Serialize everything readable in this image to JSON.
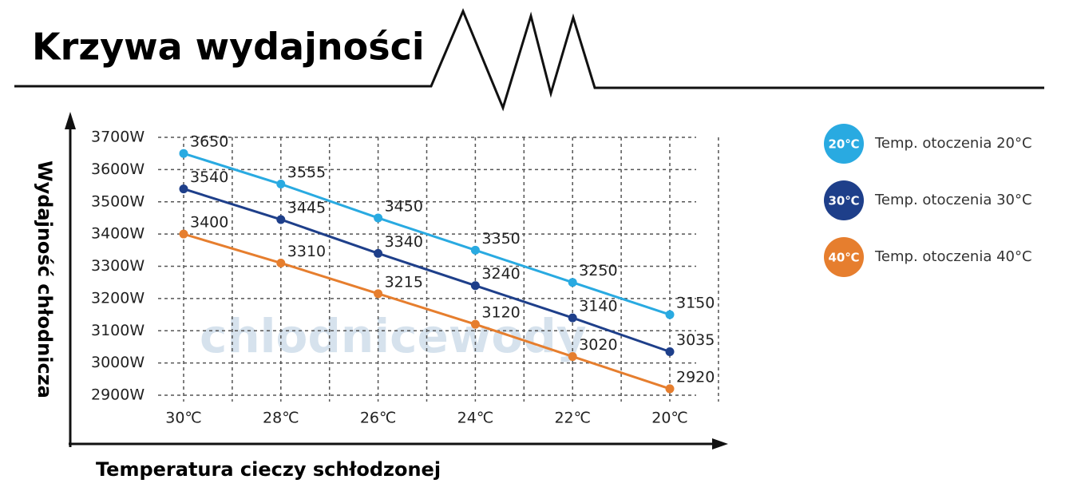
{
  "chart_data": {
    "type": "line",
    "title": "Krzywa wydajności",
    "y_label": "Wydajność chłodnicza",
    "x_label": "Temperatura cieczy schłodzonej",
    "watermark": "chlodnicewody",
    "categories": [
      "30℃",
      "28℃",
      "26℃",
      "24℃",
      "22℃",
      "20℃"
    ],
    "ylim": [
      2900,
      3700
    ],
    "yticks": [
      {
        "value": 2900,
        "label": "2900W"
      },
      {
        "value": 3000,
        "label": "3000W"
      },
      {
        "value": 3100,
        "label": "3100W"
      },
      {
        "value": 3200,
        "label": "3200W"
      },
      {
        "value": 3300,
        "label": "3300W"
      },
      {
        "value": 3400,
        "label": "3400W"
      },
      {
        "value": 3500,
        "label": "3500W"
      },
      {
        "value": 3600,
        "label": "3600W"
      },
      {
        "value": 3700,
        "label": "3700W"
      }
    ],
    "grid": true,
    "series": [
      {
        "name": "Temp. otoczenia 20°C",
        "badge": "20℃",
        "color": "#29aae1",
        "values": [
          3650,
          3555,
          3450,
          3350,
          3250,
          3150
        ]
      },
      {
        "name": "Temp. otoczenia 30°C",
        "badge": "30℃",
        "color": "#1e3f8a",
        "values": [
          3540,
          3445,
          3340,
          3240,
          3140,
          3035
        ]
      },
      {
        "name": "Temp. otoczenia 40°C",
        "badge": "40℃",
        "color": "#e67e2e",
        "values": [
          3400,
          3310,
          3215,
          3120,
          3020,
          2920
        ]
      }
    ]
  }
}
